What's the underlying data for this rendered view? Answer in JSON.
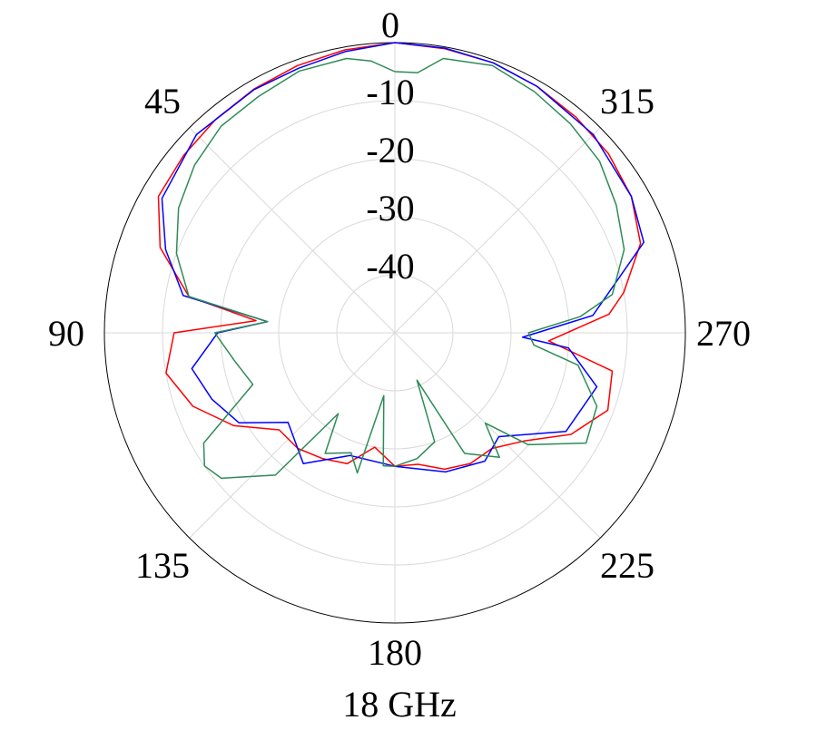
{
  "chart_data": {
    "type": "line",
    "subtype": "polar",
    "title": "18 GHz",
    "angular_direction": "counterclockwise",
    "zero_location": "top",
    "angle_ticks": [
      0,
      45,
      90,
      135,
      180,
      225,
      270,
      315
    ],
    "angle_tick_labels": [
      "0",
      "45",
      "90",
      "135",
      "180",
      "225",
      "270",
      "315"
    ],
    "radial_range": [
      -50,
      0
    ],
    "radial_ticks": [
      0,
      -10,
      -20,
      -30,
      -40
    ],
    "radial_tick_labels": [
      "0",
      "-10",
      "-20",
      "-30",
      "-40"
    ],
    "grid": true,
    "series": [
      {
        "color": "#ff0000",
        "angles": [
          0,
          10,
          20,
          30,
          40,
          50,
          60,
          70,
          80,
          85,
          90,
          100,
          110,
          120,
          130,
          140,
          150,
          160,
          170,
          180,
          190,
          200,
          210,
          220,
          230,
          240,
          250,
          260,
          267,
          275,
          280,
          290,
          300,
          310,
          320,
          330,
          340,
          350,
          360
        ],
        "values": [
          0,
          -0.5,
          -1,
          -1.5,
          -2,
          -2.5,
          -3,
          -7,
          -14,
          -26,
          -12,
          -10,
          -13,
          -18,
          -24,
          -24,
          -25,
          -26,
          -30,
          -27,
          -27,
          -25,
          -24,
          -24,
          -21,
          -15,
          -11,
          -12,
          -23.5,
          -13,
          -10,
          -5,
          -3,
          -2,
          -1.5,
          -1,
          -0.5,
          -0.3,
          0
        ]
      },
      {
        "color": "#0000ff",
        "angles": [
          0,
          10,
          20,
          30,
          45,
          60,
          70,
          80,
          85,
          90,
          100,
          110,
          120,
          130,
          145,
          160,
          180,
          200,
          215,
          225,
          240,
          255,
          265,
          268,
          275,
          290,
          300,
          315,
          330,
          340,
          350,
          360
        ],
        "values": [
          0,
          -0.8,
          -1.5,
          -1.6,
          -1.7,
          -3.7,
          -8,
          -13,
          -28,
          -19.5,
          -14.5,
          -16.5,
          -19,
          -26,
          -22.5,
          -27.5,
          -27,
          -24.5,
          -23,
          -24.7,
          -16,
          -14,
          -20,
          -28,
          -15.8,
          -4.4,
          -3,
          -1.7,
          -1,
          -0.5,
          -0.2,
          0
        ]
      },
      {
        "color": "#2e8b57",
        "angles": [
          0,
          5,
          10,
          20,
          30,
          40,
          50,
          60,
          70,
          80,
          85,
          90,
          100,
          110,
          120,
          125,
          130,
          140,
          145,
          150,
          160,
          165,
          170,
          175,
          180,
          190,
          200,
          205,
          210,
          220,
          225,
          230,
          240,
          250,
          260,
          265,
          270,
          275,
          280,
          290,
          300,
          310,
          320,
          330,
          340,
          350,
          355,
          360
        ],
        "values": [
          -5,
          -3,
          -2,
          -2,
          -3,
          -3.5,
          -5,
          -7,
          -10,
          -14,
          -28,
          -19,
          -22,
          -24,
          -12,
          -10,
          -11,
          -18,
          -33,
          -26,
          -28,
          -25,
          -39,
          -27,
          -27,
          -28,
          -30,
          -41,
          -26,
          -22,
          -28,
          -20,
          -12,
          -13,
          -18,
          -26,
          -27,
          -18,
          -12,
          -8,
          -6,
          -4,
          -3,
          -2,
          -1,
          -2,
          -5,
          -5
        ]
      }
    ]
  }
}
